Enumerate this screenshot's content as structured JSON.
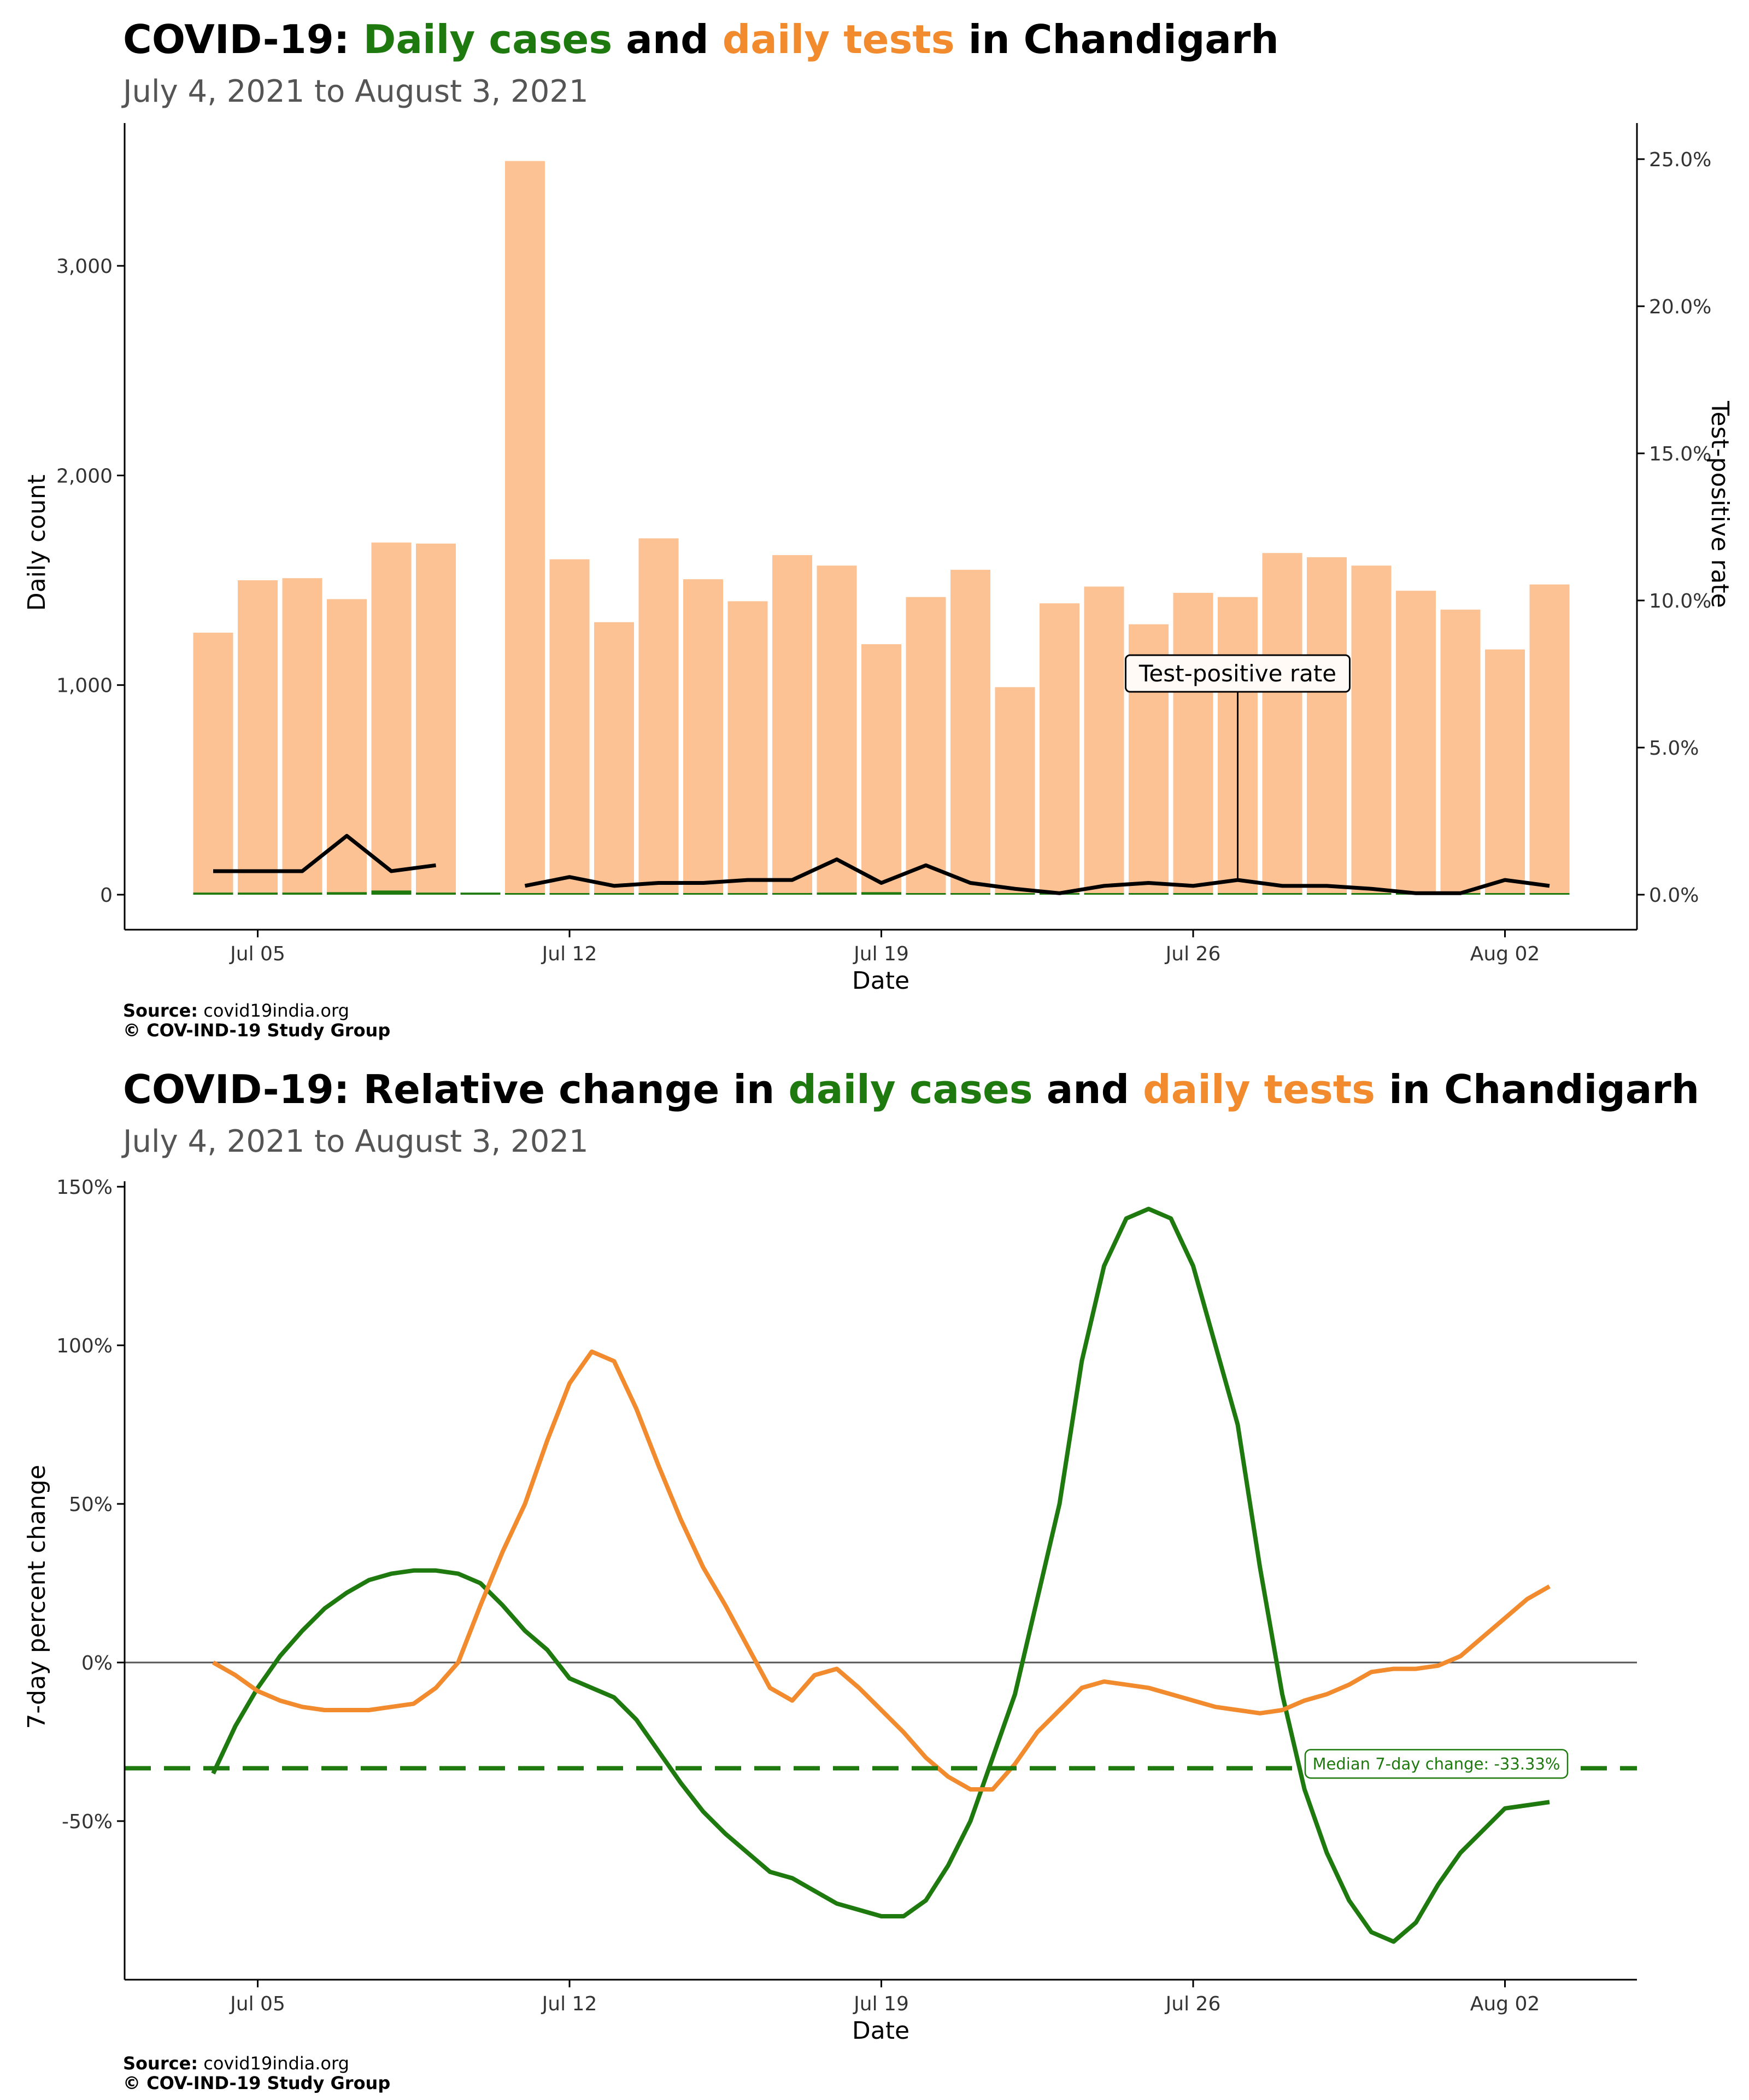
{
  "colors": {
    "cases": "#1e7a0e",
    "tests": "#f28a2e",
    "tests_bar": "#fdc294",
    "tpr": "#000000",
    "zero_line": "#555555"
  },
  "panel1": {
    "title_parts": [
      "COVID-19: ",
      "Daily cases",
      " and ",
      "daily tests",
      " in Chandigarh"
    ],
    "subtitle": "July  4, 2021 to August  3, 2021",
    "source_label": "Source:",
    "source_value": " covid19india.org",
    "copyright": "© COV-IND-19 Study Group"
  },
  "panel2": {
    "title_parts": [
      "COVID-19: Relative change in ",
      "daily cases",
      " and ",
      "daily tests",
      " in Chandigarh"
    ],
    "subtitle": "July  4, 2021 to August  3, 2021",
    "source_label": "Source:",
    "source_value": " covid19india.org",
    "copyright": "© COV-IND-19 Study Group"
  },
  "chart_data": [
    {
      "type": "bar",
      "xlabel": "Date",
      "ylabel": "Daily count",
      "y2label": "Test-positive rate",
      "x_tick_labels": [
        {
          "day": 5,
          "label": "Jul 05"
        },
        {
          "day": 12,
          "label": "Jul 12"
        },
        {
          "day": 19,
          "label": "Jul 19"
        },
        {
          "day": 26,
          "label": "Jul 26"
        },
        {
          "day": 33,
          "label": "Aug 02"
        }
      ],
      "y_ticks": [
        {
          "value": 0,
          "label": "0"
        },
        {
          "value": 1000,
          "label": "1,000"
        },
        {
          "value": 2000,
          "label": "2,000"
        },
        {
          "value": 3000,
          "label": "3,000"
        }
      ],
      "y2_ticks": [
        {
          "value": 0,
          "label": "0.0%"
        },
        {
          "value": 5,
          "label": "5.0%"
        },
        {
          "value": 10,
          "label": "10.0%"
        },
        {
          "value": 15,
          "label": "15.0%"
        },
        {
          "value": 20,
          "label": "20.0%"
        },
        {
          "value": 25,
          "label": "25.0%"
        }
      ],
      "days_july": [
        4,
        5,
        6,
        7,
        8,
        9,
        10,
        11,
        12,
        13,
        14,
        15,
        16,
        17,
        18,
        19,
        20,
        21,
        22,
        23,
        24,
        25,
        26,
        27,
        28,
        29,
        30,
        31,
        32,
        33,
        34
      ],
      "daily_tests": [
        1250,
        1500,
        1510,
        1410,
        1680,
        1675,
        null,
        3500,
        1600,
        1300,
        1700,
        1505,
        1400,
        1620,
        1570,
        1195,
        1420,
        1550,
        990,
        1390,
        1470,
        1290,
        1440,
        1420,
        1630,
        1610,
        1570,
        1450,
        1360,
        1170,
        1480
      ],
      "daily_cases": [
        10,
        10,
        10,
        12,
        20,
        10,
        10,
        null,
        5,
        5,
        4,
        6,
        5,
        8,
        10,
        12,
        6,
        4,
        3,
        1,
        4,
        5,
        3,
        5,
        3,
        3,
        3,
        1,
        1,
        4,
        2
      ],
      "test_positive_rate_pct": [
        0.8,
        0.8,
        0.8,
        2.0,
        0.8,
        1.0,
        null,
        0.3,
        0.6,
        0.3,
        0.4,
        0.4,
        0.5,
        0.5,
        1.2,
        0.4,
        1.0,
        0.4,
        0.2,
        0.05,
        0.3,
        0.4,
        0.3,
        0.5,
        0.3,
        0.3,
        0.2,
        0.05,
        0.05,
        0.5,
        0.3
      ],
      "annotation": {
        "text": "Test-positive rate",
        "day": 27
      },
      "ylim": [
        0,
        3500
      ],
      "y2lim": [
        0,
        25
      ]
    },
    {
      "type": "line",
      "xlabel": "Date",
      "ylabel": "7-day percent change",
      "x_tick_labels": [
        {
          "day": 5,
          "label": "Jul 05"
        },
        {
          "day": 12,
          "label": "Jul 12"
        },
        {
          "day": 19,
          "label": "Jul 19"
        },
        {
          "day": 26,
          "label": "Jul 26"
        },
        {
          "day": 33,
          "label": "Aug 02"
        }
      ],
      "y_ticks": [
        {
          "value": -50,
          "label": "-50%"
        },
        {
          "value": 0,
          "label": "0%"
        },
        {
          "value": 50,
          "label": "50%"
        },
        {
          "value": 100,
          "label": "100%"
        },
        {
          "value": 150,
          "label": "150%"
        }
      ],
      "x_days": [
        4,
        4.5,
        5,
        5.5,
        6,
        6.5,
        7,
        7.5,
        8,
        8.5,
        9,
        9.5,
        10,
        10.5,
        11,
        11.5,
        12,
        12.5,
        13,
        13.5,
        14,
        14.5,
        15,
        15.5,
        16,
        16.5,
        17,
        17.5,
        18,
        18.5,
        19,
        19.5,
        20,
        20.5,
        21,
        21.5,
        22,
        22.5,
        23,
        23.5,
        24,
        24.5,
        25,
        25.5,
        26,
        26.5,
        27,
        27.5,
        28,
        28.5,
        29,
        29.5,
        30,
        30.5,
        31,
        31.5,
        32,
        32.5,
        33,
        33.5,
        34
      ],
      "series": [
        {
          "key": "cases",
          "values": [
            -35,
            -20,
            -8,
            2,
            10,
            17,
            22,
            26,
            28,
            29,
            29,
            28,
            25,
            18,
            10,
            4,
            -5,
            -8,
            -11,
            -18,
            -28,
            -38,
            -47,
            -54,
            -60,
            -66,
            -68,
            -72,
            -76,
            -78,
            -80,
            -80,
            -75,
            -64,
            -50,
            -30,
            -10,
            20,
            50,
            95,
            125,
            140,
            143,
            140,
            125,
            100,
            75,
            30,
            -10,
            -40,
            -60,
            -75,
            -85,
            -88,
            -82,
            -70,
            -60,
            -53,
            -46,
            -45,
            -44
          ]
        },
        {
          "key": "tests",
          "values": [
            0,
            -4,
            -9,
            -12,
            -14,
            -15,
            -15,
            -15,
            -14,
            -13,
            -8,
            0,
            18,
            35,
            50,
            70,
            88,
            98,
            95,
            80,
            62,
            45,
            30,
            18,
            5,
            -8,
            -12,
            -4,
            -2,
            -8,
            -15,
            -22,
            -30,
            -36,
            -40,
            -40,
            -32,
            -22,
            -15,
            -8,
            -6,
            -7,
            -8,
            -10,
            -12,
            -14,
            -15,
            -16,
            -15,
            -12,
            -10,
            -7,
            -3,
            -2,
            -2,
            -1,
            2,
            8,
            14,
            20,
            24
          ]
        }
      ],
      "median_line": {
        "value": -33.33,
        "label": "Median 7-day change: -33.33%"
      },
      "ylim": [
        -98,
        152
      ]
    }
  ]
}
